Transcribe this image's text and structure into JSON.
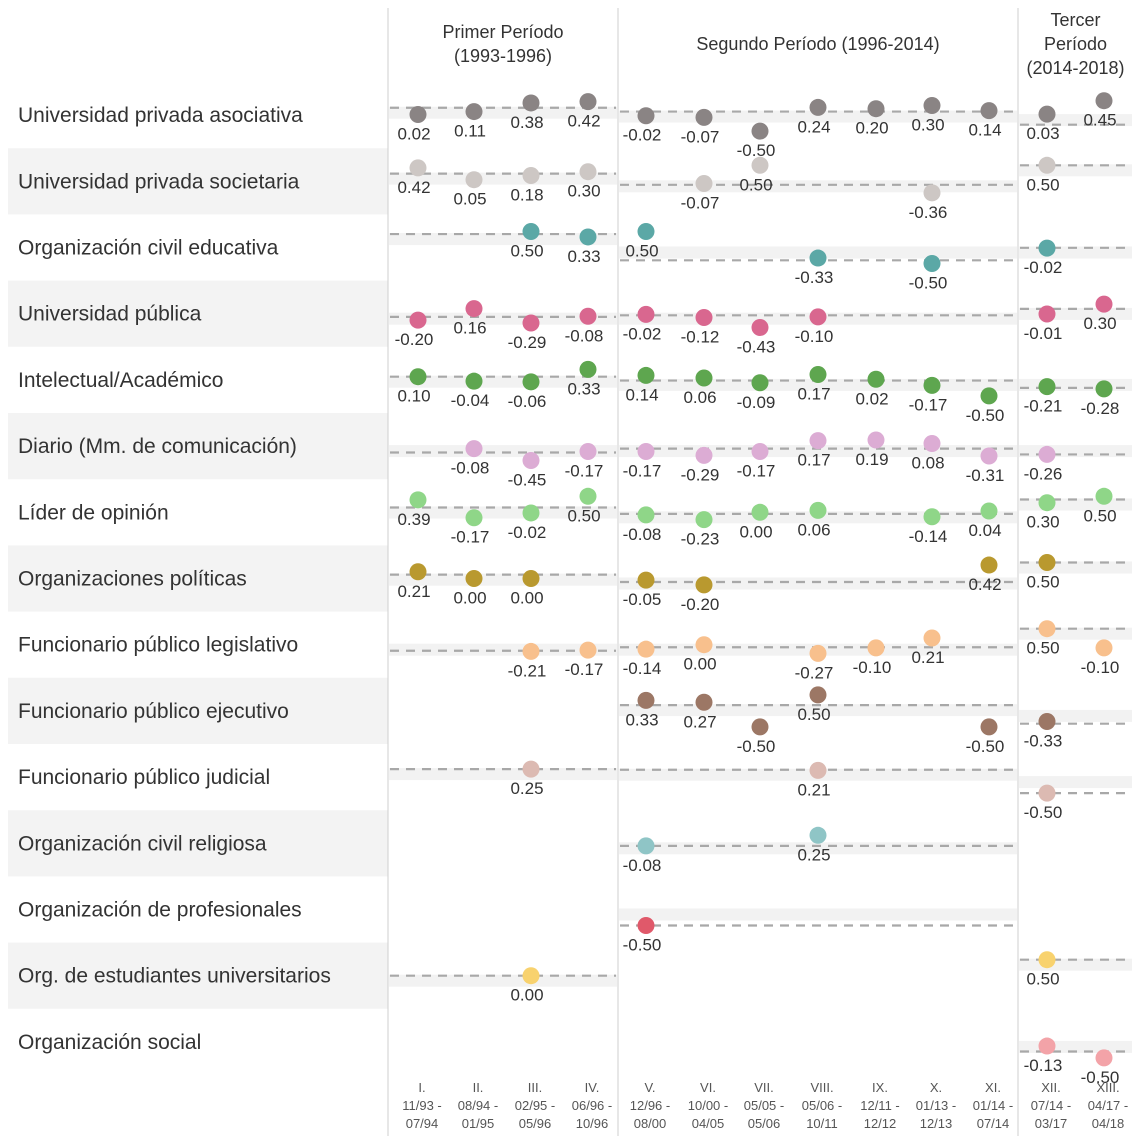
{
  "chart_data": {
    "type": "scatter",
    "periods": [
      {
        "title_lines": [
          "Primer Período",
          "(1993-1996)"
        ]
      },
      {
        "title_lines": [
          "Segundo Período (1996-2014)"
        ]
      },
      {
        "title_lines": [
          "Tercer",
          "Período",
          "(2014-2018)"
        ]
      }
    ],
    "columns": [
      {
        "lines": [
          "I.",
          "11/93 -",
          "07/94"
        ]
      },
      {
        "lines": [
          "II.",
          "08/94 -",
          "01/95"
        ]
      },
      {
        "lines": [
          "III.",
          "02/95 -",
          "05/96"
        ]
      },
      {
        "lines": [
          "IV.",
          "06/96 -",
          "10/96"
        ]
      },
      {
        "lines": [
          "V.",
          "12/96 -",
          "08/00"
        ]
      },
      {
        "lines": [
          "VI.",
          "10/00 -",
          "04/05"
        ]
      },
      {
        "lines": [
          "VII.",
          "05/05 -",
          "05/06"
        ]
      },
      {
        "lines": [
          "VIII.",
          "05/06 -",
          "10/11"
        ]
      },
      {
        "lines": [
          "IX.",
          "12/11 -",
          "12/12"
        ]
      },
      {
        "lines": [
          "X.",
          "01/13 -",
          "12/13"
        ]
      },
      {
        "lines": [
          "XI.",
          "01/14 -",
          "07/14"
        ]
      },
      {
        "lines": [
          "XII.",
          "07/14 -",
          "03/17"
        ]
      },
      {
        "lines": [
          "XIII.",
          "04/17 -",
          "04/18"
        ]
      }
    ],
    "period_averages": [
      [
        0.23,
        0.11,
        -0.3
      ],
      [
        0.24,
        -0.11,
        0.5
      ],
      [
        0.42,
        -0.4,
        -0.01
      ],
      [
        -0.1,
        -0.05,
        0.15
      ],
      [
        0.1,
        -0.02,
        -0.25
      ],
      [
        -0.2,
        -0.08,
        -0.26
      ],
      [
        0.15,
        -0.05,
        0.4
      ],
      [
        0.12,
        -0.11,
        0.5
      ],
      [
        -0.19,
        -0.08,
        0.5
      ],
      [
        null,
        0.18,
        -0.4
      ],
      [
        0.25,
        0.23,
        -0.5
      ],
      [
        null,
        -0.08,
        null
      ],
      [
        null,
        -0.5,
        null
      ],
      [
        0.0,
        null,
        0.5
      ],
      [
        null,
        null,
        -0.3
      ]
    ],
    "series": [
      {
        "name": "Universidad privada asociativa",
        "color": "#8a8484",
        "values": [
          0.02,
          0.11,
          0.38,
          0.42,
          -0.02,
          -0.07,
          -0.5,
          0.24,
          0.2,
          0.3,
          0.14,
          0.03,
          0.45
        ]
      },
      {
        "name": "Universidad privada societaria",
        "color": "#cdc7c4",
        "values": [
          0.42,
          0.05,
          0.18,
          0.3,
          null,
          -0.07,
          0.5,
          null,
          null,
          -0.36,
          null,
          0.5,
          null
        ]
      },
      {
        "name": "Organización civil educativa",
        "color": "#5ba8a6",
        "values": [
          null,
          null,
          0.5,
          0.33,
          0.5,
          null,
          null,
          -0.33,
          null,
          -0.5,
          null,
          -0.02,
          null
        ]
      },
      {
        "name": "Universidad pública",
        "color": "#d9678f",
        "values": [
          -0.2,
          0.16,
          -0.29,
          -0.08,
          -0.02,
          -0.12,
          -0.43,
          -0.1,
          null,
          null,
          null,
          -0.01,
          0.3
        ]
      },
      {
        "name": "Intelectual/Académico",
        "color": "#5ea64f",
        "values": [
          0.1,
          -0.04,
          -0.06,
          0.33,
          0.14,
          0.06,
          -0.09,
          0.17,
          0.02,
          -0.17,
          -0.5,
          -0.21,
          -0.28
        ]
      },
      {
        "name": "Diario (Mm. de comunicación)",
        "color": "#dcacd4",
        "values": [
          null,
          -0.08,
          -0.45,
          -0.17,
          -0.17,
          -0.29,
          -0.17,
          0.17,
          0.19,
          0.08,
          -0.31,
          -0.26,
          null
        ]
      },
      {
        "name": "Líder de opinión",
        "color": "#8fd688",
        "values": [
          0.39,
          -0.17,
          -0.02,
          0.5,
          -0.08,
          -0.23,
          0.0,
          0.06,
          null,
          -0.14,
          0.04,
          0.3,
          0.5
        ]
      },
      {
        "name": "Organizaciones políticas",
        "color": "#b9992f",
        "values": [
          0.21,
          0.0,
          0.0,
          null,
          -0.05,
          -0.2,
          null,
          null,
          null,
          null,
          0.42,
          0.5,
          null
        ]
      },
      {
        "name": "Funcionario público legislativo",
        "color": "#f8c08d",
        "values": [
          null,
          null,
          -0.21,
          -0.17,
          -0.14,
          0.0,
          null,
          -0.27,
          -0.1,
          0.21,
          null,
          0.5,
          -0.1
        ]
      },
      {
        "name": "Funcionario público ejecutivo",
        "color": "#9c7765",
        "values": [
          null,
          null,
          null,
          null,
          0.33,
          0.27,
          -0.5,
          0.5,
          null,
          null,
          -0.5,
          -0.33,
          null
        ]
      },
      {
        "name": "Funcionario público judicial",
        "color": "#dcbab2",
        "values": [
          null,
          null,
          0.25,
          null,
          null,
          null,
          null,
          0.21,
          null,
          null,
          null,
          -0.5,
          null
        ]
      },
      {
        "name": "Organización civil religiosa",
        "color": "#8fc5c6",
        "values": [
          null,
          null,
          null,
          null,
          -0.08,
          null,
          null,
          0.25,
          null,
          null,
          null,
          null,
          null
        ]
      },
      {
        "name": "Organización de profesionales",
        "color": "#e0596a",
        "values": [
          null,
          null,
          null,
          null,
          -0.5,
          null,
          null,
          null,
          null,
          null,
          null,
          null,
          null
        ]
      },
      {
        "name": "Org. de estudiantes universitarios",
        "color": "#f8d26e",
        "values": [
          null,
          null,
          0.0,
          null,
          null,
          null,
          null,
          null,
          null,
          null,
          null,
          0.5,
          null
        ]
      },
      {
        "name": "Organización social",
        "color": "#f3a3a8",
        "values": [
          null,
          null,
          null,
          null,
          null,
          null,
          null,
          null,
          null,
          null,
          null,
          -0.13,
          -0.5
        ]
      }
    ]
  }
}
